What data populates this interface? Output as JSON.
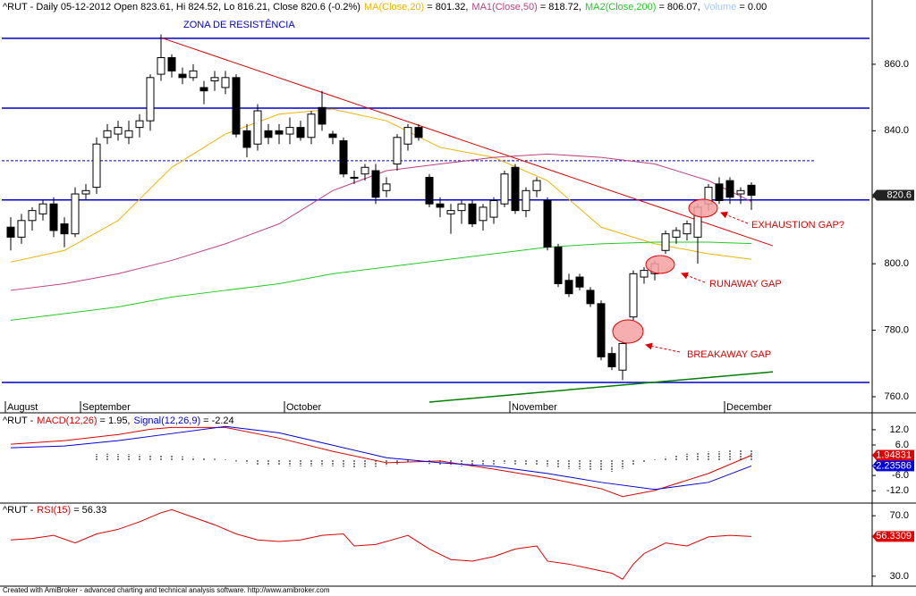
{
  "chart_data": [
    {
      "type": "candlestick",
      "title": "^RUT - Daily 05-12-2012 Open 823.61, Hi 824.52, Lo 816.21, Close 820.6 (-0.2%)",
      "categories": [
        "August",
        null,
        null,
        null,
        null,
        null,
        null,
        "September",
        null,
        null,
        null,
        null,
        null,
        null,
        null,
        null,
        null,
        null,
        null,
        null,
        null,
        null,
        null,
        null,
        null,
        null,
        "October",
        null,
        null,
        null,
        null,
        null,
        null,
        null,
        null,
        null,
        null,
        null,
        null,
        null,
        null,
        null,
        null,
        null,
        null,
        null,
        null,
        "November",
        null,
        null,
        null,
        null,
        null,
        null,
        null,
        null,
        null,
        null,
        null,
        null,
        null,
        null,
        null,
        null,
        null,
        null,
        null,
        "December",
        null,
        null
      ],
      "ohlc": [
        [
          811,
          814,
          804,
          808
        ],
        [
          808,
          815,
          806,
          813
        ],
        [
          813,
          817,
          810,
          816
        ],
        [
          815,
          819,
          813,
          818
        ],
        [
          818,
          820,
          808,
          810
        ],
        [
          812,
          814,
          805,
          809
        ],
        [
          809,
          823,
          808,
          821
        ],
        [
          821,
          824,
          819,
          822
        ],
        [
          823,
          838,
          821,
          836
        ],
        [
          838,
          842,
          836,
          840
        ],
        [
          839,
          843,
          837,
          841
        ],
        [
          838,
          843,
          836,
          840
        ],
        [
          841,
          845,
          838,
          843
        ],
        [
          843,
          857,
          840,
          856
        ],
        [
          857,
          869,
          855,
          862
        ],
        [
          862,
          863,
          856,
          858
        ],
        [
          857,
          859,
          854,
          856
        ],
        [
          856,
          860,
          855,
          858
        ],
        [
          853,
          855,
          848,
          852
        ],
        [
          855,
          858,
          852,
          856
        ],
        [
          853,
          858,
          851,
          856
        ],
        [
          856,
          857,
          838,
          839
        ],
        [
          840,
          842,
          832,
          835
        ],
        [
          836,
          848,
          834,
          846
        ],
        [
          840,
          842,
          836,
          838
        ],
        [
          840,
          842,
          836,
          839
        ],
        [
          839,
          844,
          836,
          841
        ],
        [
          841,
          843,
          837,
          838
        ],
        [
          838,
          846,
          836,
          845
        ],
        [
          847,
          852,
          840,
          842
        ],
        [
          839,
          840,
          836,
          838
        ],
        [
          837,
          838,
          826,
          827
        ],
        [
          826,
          828,
          824,
          826
        ],
        [
          827,
          830,
          825,
          829
        ],
        [
          828,
          830,
          818,
          820
        ],
        [
          822,
          826,
          820,
          824
        ],
        [
          830,
          839,
          828,
          838
        ],
        [
          836,
          842,
          834,
          841
        ],
        [
          841,
          842,
          837,
          838
        ],
        [
          826,
          827,
          817,
          818
        ],
        [
          818,
          820,
          814,
          817
        ],
        [
          815,
          818,
          809,
          816
        ],
        [
          816,
          819,
          812,
          818
        ],
        [
          818,
          819,
          811,
          812
        ],
        [
          813,
          818,
          810,
          817
        ],
        [
          814,
          820,
          812,
          819
        ],
        [
          818,
          828,
          817,
          827
        ],
        [
          829,
          830,
          815,
          816
        ],
        [
          816,
          823,
          814,
          822
        ],
        [
          822,
          826,
          820,
          825
        ],
        [
          819,
          820,
          804,
          805
        ],
        [
          805,
          806,
          793,
          794
        ],
        [
          795,
          797,
          790,
          791
        ],
        [
          796,
          797,
          792,
          793
        ],
        [
          792,
          793,
          787,
          788
        ],
        [
          788,
          789,
          771,
          772
        ],
        [
          773,
          775,
          768,
          769
        ],
        [
          768,
          777,
          765,
          776
        ],
        [
          784,
          798,
          783,
          797
        ],
        [
          796,
          799,
          794,
          798
        ],
        [
          797,
          801,
          795,
          800
        ],
        [
          804,
          810,
          803,
          809
        ],
        [
          808,
          811,
          806,
          810
        ],
        [
          809,
          813,
          807,
          812
        ],
        [
          808,
          818,
          800,
          817
        ],
        [
          818,
          824,
          816,
          823
        ],
        [
          824,
          826,
          818,
          819
        ],
        [
          825,
          826,
          818,
          820
        ],
        [
          821,
          823,
          818,
          822
        ],
        [
          823.61,
          824.52,
          816.21,
          820.6
        ]
      ],
      "colors": {
        "up": "#ffffff",
        "down": "#000000"
      },
      "series": [
        {
          "name": "MA(Close,20)",
          "label": "= 801.32,",
          "color": "#f0b400",
          "x": [
            0,
            5,
            10,
            15,
            20,
            25,
            30,
            35,
            40,
            45,
            50,
            55,
            60,
            65,
            69
          ],
          "values": [
            800.5,
            804,
            813,
            829,
            839,
            845,
            846.5,
            843,
            835,
            832,
            825,
            811,
            806,
            803,
            801.32
          ]
        },
        {
          "name": "MA1(Close,50)",
          "label": "= 818.72,",
          "color": "#c04080",
          "x": [
            0,
            5,
            10,
            15,
            20,
            25,
            30,
            35,
            40,
            45,
            50,
            55,
            60,
            65,
            69
          ],
          "values": [
            792,
            794,
            797,
            801,
            806,
            812,
            822,
            828,
            830,
            832,
            833,
            832,
            830,
            825,
            818.72
          ]
        },
        {
          "name": "MA2(Close,200)",
          "label": "= 806.07,",
          "color": "#22cc22",
          "x": [
            0,
            5,
            10,
            15,
            20,
            25,
            30,
            35,
            40,
            45,
            50,
            55,
            60,
            65,
            69
          ],
          "values": [
            783,
            785,
            787,
            790,
            792,
            794,
            797,
            799,
            801,
            803,
            805,
            806,
            806.5,
            806.5,
            806.07
          ]
        }
      ],
      "volume": {
        "name": "Volume",
        "label": "= 0.00",
        "color": "#a8c8ff"
      },
      "hlines": {
        "color": "#0000cc",
        "solid": [
          867.8,
          846.8,
          819.2,
          764.3
        ],
        "dashed": [
          831
        ]
      },
      "trendlines": [
        {
          "color": "#e00000",
          "x": [
            14,
            71
          ],
          "values": [
            868,
            805.4
          ]
        },
        {
          "color": "#008000",
          "x": [
            39,
            71
          ],
          "values": [
            758.4,
            767.5
          ]
        }
      ],
      "annotations": [
        "ZONA DE RESISTÊNCIA",
        "EXHAUSTION GAP?",
        "RUNAWAY GAP",
        "BREAKAWAY GAP"
      ],
      "xlim": [
        -1,
        80.25
      ],
      "ylim": [
        755.7,
        875.3
      ],
      "yticks": [
        {
          "value": 760,
          "label": "760.0"
        },
        {
          "value": 780,
          "label": "780.0"
        },
        {
          "value": 800,
          "label": "800.0"
        },
        {
          "value": 820,
          "label": "820.0"
        },
        {
          "value": 840,
          "label": "840.0"
        },
        {
          "value": 860,
          "label": "860.0"
        }
      ]
    },
    {
      "type": "line",
      "title": "^RUT -",
      "series": [
        {
          "name": "MACD(12,26)",
          "label": "= 1.95,",
          "color": "#e00000",
          "x": [
            0,
            5,
            10,
            13,
            15,
            20,
            25,
            30,
            35,
            40,
            45,
            50,
            55,
            57,
            60,
            65,
            69
          ],
          "values": [
            6.3,
            7.7,
            10.1,
            12.2,
            12.9,
            12.9,
            8.7,
            3.5,
            -1.0,
            -0.3,
            -3.5,
            -7.0,
            -11.2,
            -14.3,
            -11.9,
            -5.2,
            1.94831
          ]
        },
        {
          "name": "Signal(12,26,9)",
          "label": "= -2.24",
          "color": "#0000e0",
          "x": [
            0,
            5,
            10,
            15,
            20,
            25,
            30,
            35,
            40,
            45,
            50,
            55,
            60,
            65,
            69
          ],
          "values": [
            4.9,
            5.6,
            7.7,
            10.5,
            13.3,
            10.8,
            5.9,
            1.0,
            -1.0,
            -2.4,
            -5.2,
            -8.7,
            -11.5,
            -8.7,
            -2.23586
          ]
        }
      ],
      "histogram": {
        "color": "#000000",
        "values": [
          null,
          null,
          null,
          null,
          null,
          null,
          null,
          null,
          2.5,
          2.6,
          2.5,
          2.4,
          2.3,
          2.2,
          2.0,
          1.8,
          1.5,
          1.2,
          0.9,
          0.6,
          0.3,
          -0.5,
          -1.2,
          -1.8,
          -2.2,
          -2.1,
          -2.3,
          -2.4,
          -2.4,
          -2.3,
          -2.4,
          -2.6,
          -2.8,
          -2.7,
          -2.6,
          -2.2,
          -1.6,
          -1.0,
          -0.8,
          -1.5,
          -1.9,
          -2.2,
          -2.4,
          -2.5,
          -2.3,
          -1.8,
          -1.3,
          -1.7,
          -2.0,
          -2.1,
          -2.5,
          -3.0,
          -3.4,
          -3.6,
          -3.8,
          -4.2,
          -4.5,
          -3.4,
          -2.0,
          -0.8,
          0.3,
          1.2,
          2.0,
          2.6,
          3.0,
          3.4,
          3.6,
          3.9,
          4.0,
          4.18
        ]
      },
      "xlim": [
        -1,
        80.25
      ],
      "ylim": [
        -16.5,
        18.3
      ],
      "yticks": [
        {
          "value": -12,
          "label": "-12.0"
        },
        {
          "value": -6,
          "label": "-6.0"
        },
        {
          "value": 6,
          "label": "6.0"
        },
        {
          "value": 12,
          "label": "12.0"
        }
      ]
    },
    {
      "type": "line",
      "title": "^RUT -",
      "series": [
        {
          "name": "RSI(15)",
          "label": "= 56.33",
          "color": "#e00000",
          "x": [
            0,
            2,
            4,
            6,
            8,
            10,
            12,
            14,
            15,
            17,
            19,
            21,
            23,
            25,
            27,
            29,
            31,
            32,
            34,
            36,
            37,
            39,
            41,
            43,
            45,
            47,
            49,
            50,
            52,
            54,
            56,
            57,
            58,
            59,
            61,
            63,
            65,
            67,
            69
          ],
          "values": [
            54,
            55,
            57,
            52,
            58,
            61,
            66,
            72,
            74,
            69,
            64,
            58,
            54,
            53,
            54,
            57,
            58,
            50,
            51,
            55,
            57,
            48,
            41,
            40,
            43,
            48,
            50,
            40,
            38,
            35,
            32,
            28,
            38,
            45,
            52,
            50,
            56,
            57,
            56.3309
          ]
        }
      ],
      "xlim": [
        -1,
        80.25
      ],
      "ylim": [
        24,
        77.8
      ],
      "yticks": [
        {
          "value": 30,
          "label": "30.0"
        },
        {
          "value": 70,
          "label": "70.0"
        }
      ]
    }
  ],
  "footer": "Created with AmiBroker - advanced charting and technical analysis software. http://www.amibroker.com"
}
